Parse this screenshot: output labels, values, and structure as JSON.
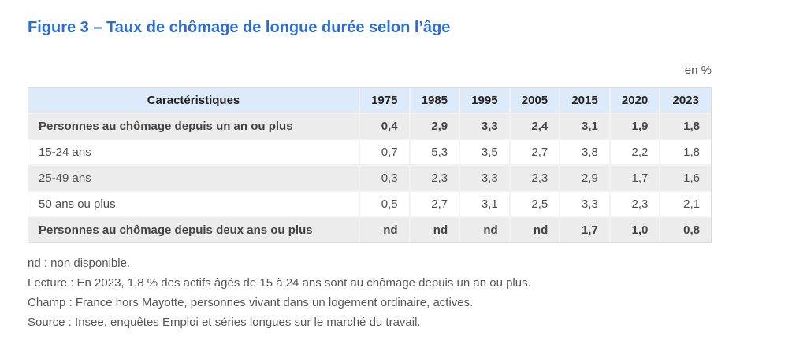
{
  "figure": {
    "title": "Figure 3 – Taux de chômage de longue durée selon l’âge",
    "unit_label": "en %"
  },
  "table": {
    "header": [
      "Caractéristiques",
      "1975",
      "1985",
      "1995",
      "2005",
      "2015",
      "2020",
      "2023"
    ],
    "rows": [
      {
        "label": "Personnes au chômage depuis un an ou plus",
        "bold": true,
        "values": [
          "0,4",
          "2,9",
          "3,3",
          "2,4",
          "3,1",
          "1,9",
          "1,8"
        ]
      },
      {
        "label": "15-24 ans",
        "bold": false,
        "values": [
          "0,7",
          "5,3",
          "3,5",
          "2,7",
          "3,8",
          "2,2",
          "1,8"
        ]
      },
      {
        "label": "25-49 ans",
        "bold": false,
        "values": [
          "0,3",
          "2,3",
          "3,3",
          "2,3",
          "2,9",
          "1,7",
          "1,6"
        ]
      },
      {
        "label": "50 ans ou plus",
        "bold": false,
        "values": [
          "0,5",
          "2,7",
          "3,1",
          "2,5",
          "3,3",
          "2,3",
          "2,1"
        ]
      },
      {
        "label": "Personnes au chômage depuis deux ans ou plus",
        "bold": true,
        "values": [
          "nd",
          "nd",
          "nd",
          "nd",
          "1,7",
          "1,0",
          "0,8"
        ]
      }
    ]
  },
  "notes": [
    "nd : non disponible.",
    "Lecture : En 2023, 1,8 % des actifs âgés de 15 à 24 ans sont au chômage depuis un an ou plus.",
    "Champ : France hors Mayotte, personnes vivant dans un logement ordinaire, actives.",
    "Source : Insee, enquêtes Emploi et séries longues sur le marché du travail."
  ],
  "colors": {
    "title_blue": "#2b6dd8",
    "header_bg": "#dceafa",
    "stripe_bg": "#ececec",
    "table_border": "#dcdcdc",
    "cell_divider": "#f2f2f2",
    "body_text": "#4d4d4d",
    "note_text": "#555555"
  },
  "chart_data": {
    "type": "table",
    "title": "Figure 3 – Taux de chômage de longue durée selon l’âge",
    "unit": "en %",
    "categories": [
      "1975",
      "1985",
      "1995",
      "2005",
      "2015",
      "2020",
      "2023"
    ],
    "series": [
      {
        "name": "Personnes au chômage depuis un an ou plus",
        "values": [
          0.4,
          2.9,
          3.3,
          2.4,
          3.1,
          1.9,
          1.8
        ]
      },
      {
        "name": "15-24 ans",
        "values": [
          0.7,
          5.3,
          3.5,
          2.7,
          3.8,
          2.2,
          1.8
        ]
      },
      {
        "name": "25-49 ans",
        "values": [
          0.3,
          2.3,
          3.3,
          2.3,
          2.9,
          1.7,
          1.6
        ]
      },
      {
        "name": "50 ans ou plus",
        "values": [
          0.5,
          2.7,
          3.1,
          2.5,
          3.3,
          2.3,
          2.1
        ]
      },
      {
        "name": "Personnes au chômage depuis deux ans ou plus",
        "values": [
          null,
          null,
          null,
          null,
          1.7,
          1.0,
          0.8
        ]
      }
    ],
    "notes": [
      "nd : non disponible.",
      "Lecture : En 2023, 1,8 % des actifs âgés de 15 à 24 ans sont au chômage depuis un an ou plus.",
      "Champ : France hors Mayotte, personnes vivant dans un logement ordinaire, actives.",
      "Source : Insee, enquêtes Emploi et séries longues sur le marché du travail."
    ]
  }
}
